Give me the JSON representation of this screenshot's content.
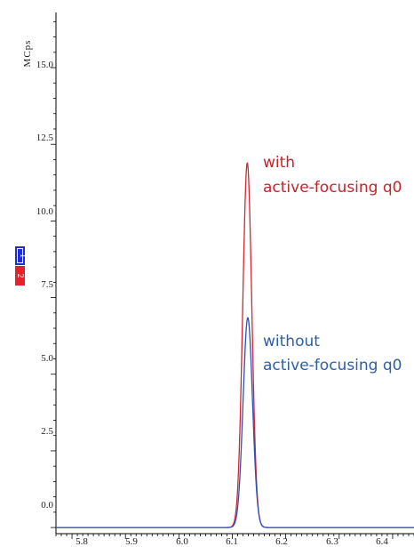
{
  "chart_data": {
    "type": "line",
    "y_unit_label": "MCps",
    "x_ticks": [
      "5.8",
      "5.9",
      "6.0",
      "6.1",
      "6.2",
      "6.3",
      "6.4"
    ],
    "y_ticks": [
      "0.0",
      "2.5",
      "5.0",
      "7.5",
      "10.0",
      "12.5",
      "15.0"
    ],
    "xlim": [
      5.77,
      6.44
    ],
    "ylim": [
      -0.2,
      16.8
    ],
    "grid": false,
    "legend": {
      "placement": "left",
      "entries": [
        {
          "label": "1",
          "color": "#1f2fc8"
        },
        {
          "label": "2",
          "color": "#e8202a"
        }
      ]
    },
    "series": [
      {
        "color": "#d22630",
        "baseline": 0.0,
        "peak_x": 6.128,
        "peak_y": 11.9,
        "sigma": 0.0085
      },
      {
        "color": "#2b50b8",
        "baseline": 0.0,
        "peak_x": 6.129,
        "peak_y": 6.85,
        "sigma": 0.0088
      }
    ],
    "annotations": [
      {
        "lines": [
          "with",
          "active-focusing q0"
        ],
        "color": "#c4242c"
      },
      {
        "lines": [
          "without",
          "active-focusing q0"
        ],
        "color": "#2e5fa8"
      }
    ]
  }
}
